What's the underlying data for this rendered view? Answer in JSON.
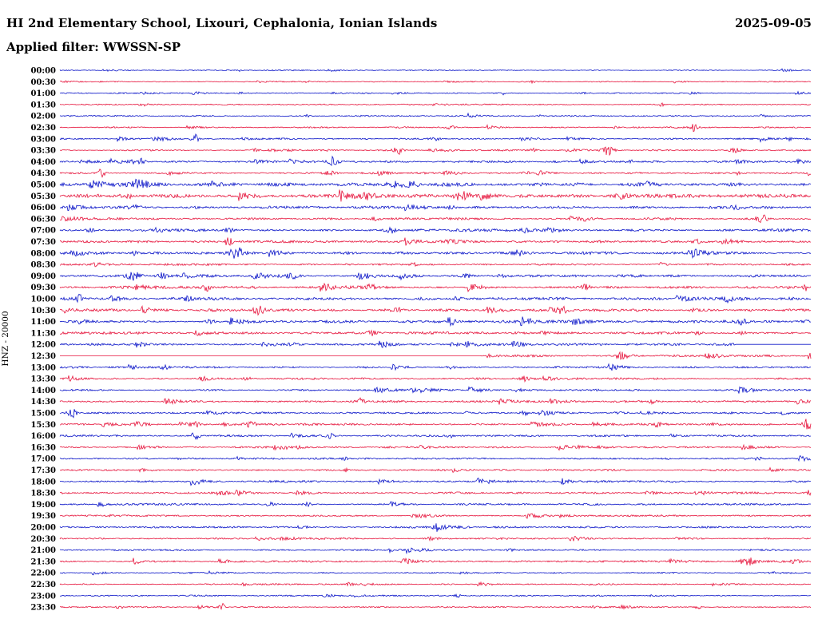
{
  "header": {
    "title": "HI 2nd Elementary School, Lixouri, Cephalonia, Ionian Islands",
    "date": "2025-09-05",
    "filter_label": "Applied filter: WWSSN-SP"
  },
  "axis": {
    "channel_label": "HNZ - 20000"
  },
  "colors": {
    "trace_blue": "#0a14c8",
    "trace_red": "#e6143c",
    "text": "#000000",
    "background": "#ffffff"
  },
  "chart_data": {
    "type": "line",
    "subtype": "helicorder-seismogram",
    "station": "HI 2nd Elementary School, Lixouri, Cephalonia, Ionian Islands",
    "date": "2025-09-05",
    "filter": "WWSSN-SP",
    "channel": "HNZ",
    "gain_scale": 20000,
    "minutes_per_row": 30,
    "legend_position": "none",
    "grid": false,
    "row_color_cycle": [
      "blue",
      "red"
    ],
    "rows": [
      {
        "t": "00:00",
        "color": "blue",
        "base": 0.6,
        "events": [
          [
            0.24,
            1.5,
            2
          ]
        ]
      },
      {
        "t": "00:30",
        "color": "red",
        "base": 0.6,
        "events": [
          [
            0.33,
            1.5,
            2
          ],
          [
            0.63,
            1.5,
            2
          ]
        ]
      },
      {
        "t": "01:00",
        "color": "blue",
        "base": 0.65,
        "events": [
          [
            0.24,
            1.5,
            2
          ],
          [
            0.59,
            2.5,
            2
          ]
        ]
      },
      {
        "t": "01:30",
        "color": "red",
        "base": 0.7,
        "events": [
          [
            0.11,
            2,
            4
          ],
          [
            0.5,
            2,
            3
          ],
          [
            0.8,
            2,
            3
          ]
        ]
      },
      {
        "t": "02:00",
        "color": "blue",
        "base": 0.75,
        "events": [
          [
            0.33,
            2,
            2
          ],
          [
            0.64,
            1.5,
            2
          ]
        ]
      },
      {
        "t": "02:30",
        "color": "red",
        "base": 0.8,
        "events": [
          [
            0.845,
            6,
            3
          ],
          [
            0.52,
            2,
            4
          ],
          [
            0.74,
            1.5,
            3
          ]
        ]
      },
      {
        "t": "03:00",
        "color": "blue",
        "base": 0.9,
        "events": [
          [
            0.18,
            9,
            3
          ],
          [
            0.14,
            2,
            4
          ],
          [
            0.5,
            2,
            4
          ],
          [
            0.97,
            2,
            3
          ]
        ]
      },
      {
        "t": "03:30",
        "color": "red",
        "base": 1.0,
        "events": [
          [
            0.45,
            5,
            4
          ],
          [
            0.73,
            7,
            5
          ],
          [
            0.63,
            2,
            4
          ],
          [
            0.9,
            3,
            4
          ],
          [
            0.26,
            2,
            3
          ]
        ]
      },
      {
        "t": "04:00",
        "color": "blue",
        "base": 1.1,
        "events": [
          [
            0.105,
            4,
            5
          ],
          [
            0.365,
            6,
            4
          ],
          [
            0.76,
            2,
            4
          ],
          [
            0.9,
            2.5,
            3
          ]
        ]
      },
      {
        "t": "04:30",
        "color": "red",
        "base": 1.1,
        "events": [
          [
            0.055,
            5,
            4
          ],
          [
            0.36,
            2,
            5
          ],
          [
            0.62,
            2.5,
            4
          ],
          [
            0.9,
            2,
            4
          ]
        ]
      },
      {
        "t": "05:00",
        "color": "blue",
        "base": 2.0,
        "events": [
          [
            0.105,
            5,
            8
          ],
          [
            0.205,
            3,
            6
          ],
          [
            0.45,
            4,
            8
          ],
          [
            0.47,
            3,
            5
          ],
          [
            0.78,
            3,
            5
          ]
        ]
      },
      {
        "t": "05:30",
        "color": "red",
        "base": 2.0,
        "events": [
          [
            0.09,
            3,
            6
          ],
          [
            0.41,
            3,
            6
          ],
          [
            0.535,
            5,
            7
          ],
          [
            0.75,
            2.5,
            5
          ]
        ]
      },
      {
        "t": "06:00",
        "color": "blue",
        "base": 1.5,
        "events": [
          [
            0.1,
            3,
            6
          ],
          [
            0.52,
            2,
            5
          ],
          [
            0.9,
            2.5,
            5
          ]
        ]
      },
      {
        "t": "06:30",
        "color": "red",
        "base": 1.3,
        "events": [
          [
            0.935,
            5,
            5
          ],
          [
            0.42,
            2,
            4
          ],
          [
            0.7,
            2,
            4
          ]
        ]
      },
      {
        "t": "07:00",
        "color": "blue",
        "base": 1.5,
        "events": [
          [
            0.04,
            2.5,
            4
          ],
          [
            0.225,
            2.5,
            4
          ],
          [
            0.44,
            4.5,
            4
          ],
          [
            0.62,
            2.5,
            4
          ]
        ]
      },
      {
        "t": "07:30",
        "color": "red",
        "base": 1.4,
        "events": [
          [
            0.225,
            4.5,
            4
          ],
          [
            0.52,
            3,
            5
          ],
          [
            0.85,
            2,
            4
          ]
        ]
      },
      {
        "t": "08:00",
        "color": "blue",
        "base": 1.5,
        "events": [
          [
            0.235,
            7,
            6
          ],
          [
            0.1,
            2.5,
            4
          ],
          [
            0.61,
            3,
            4
          ]
        ]
      },
      {
        "t": "08:30",
        "color": "red",
        "base": 1.2,
        "events": [
          [
            0.05,
            2,
            4
          ],
          [
            0.47,
            2,
            4
          ],
          [
            0.8,
            2,
            4
          ]
        ]
      },
      {
        "t": "09:00",
        "color": "blue",
        "base": 1.7,
        "events": [
          [
            0.1,
            5,
            7
          ],
          [
            0.135,
            4,
            4
          ],
          [
            0.31,
            2.5,
            4
          ],
          [
            0.54,
            2.5,
            4
          ]
        ]
      },
      {
        "t": "09:30",
        "color": "red",
        "base": 1.6,
        "events": [
          [
            0.195,
            5,
            4
          ],
          [
            0.415,
            3,
            4
          ],
          [
            0.7,
            4,
            4
          ],
          [
            0.995,
            5,
            3
          ]
        ]
      },
      {
        "t": "10:00",
        "color": "blue",
        "base": 1.7,
        "events": [
          [
            0.025,
            5,
            4
          ],
          [
            0.17,
            3,
            4
          ],
          [
            0.53,
            2.5,
            4
          ],
          [
            0.89,
            3,
            4
          ]
        ]
      },
      {
        "t": "10:30",
        "color": "red",
        "base": 1.5,
        "events": [
          [
            0.265,
            5,
            5
          ],
          [
            0.67,
            4,
            4
          ],
          [
            0.45,
            2.5,
            4
          ]
        ]
      },
      {
        "t": "11:00",
        "color": "blue",
        "base": 1.6,
        "events": [
          [
            0.52,
            5,
            4
          ],
          [
            0.91,
            4,
            4
          ],
          [
            0.2,
            2.5,
            4
          ]
        ]
      },
      {
        "t": "11:30",
        "color": "red",
        "base": 1.5,
        "events": [
          [
            0.415,
            4,
            4
          ],
          [
            0.645,
            3,
            4
          ],
          [
            0.85,
            2,
            4
          ]
        ]
      },
      {
        "t": "12:00",
        "color": "blue",
        "base": 1.4,
        "events": [
          [
            0.525,
            6,
            3
          ],
          [
            0.31,
            2.5,
            4
          ]
        ],
        "quiet": [
          [
            0.9,
            1.0
          ]
        ]
      },
      {
        "t": "12:30",
        "color": "red",
        "base": 1.3,
        "events": [
          [
            0.75,
            2.5,
            4
          ]
        ],
        "quiet": [
          [
            0.0,
            0.56
          ]
        ]
      },
      {
        "t": "13:00",
        "color": "blue",
        "base": 1.1,
        "events": [
          [
            0.14,
            2,
            4
          ],
          [
            0.52,
            2,
            4
          ]
        ]
      },
      {
        "t": "13:30",
        "color": "red",
        "base": 1.1,
        "events": [
          [
            0.62,
            2.5,
            4
          ],
          [
            0.25,
            2,
            4
          ]
        ]
      },
      {
        "t": "14:00",
        "color": "blue",
        "base": 1.1,
        "events": [
          [
            0.47,
            2,
            4
          ]
        ]
      },
      {
        "t": "14:30",
        "color": "red",
        "base": 1.1,
        "events": [
          [
            0.4,
            5,
            4
          ],
          [
            0.79,
            2,
            4
          ]
        ]
      },
      {
        "t": "15:00",
        "color": "blue",
        "base": 1.1,
        "events": [
          [
            0.016,
            6,
            4
          ],
          [
            0.62,
            2.5,
            4
          ]
        ]
      },
      {
        "t": "15:30",
        "color": "red",
        "base": 1.2,
        "events": [
          [
            0.255,
            5,
            5
          ],
          [
            0.995,
            7,
            4
          ],
          [
            0.18,
            2.5,
            4
          ]
        ]
      },
      {
        "t": "16:00",
        "color": "blue",
        "base": 1.1,
        "events": [
          [
            0.18,
            4,
            4
          ],
          [
            0.36,
            3,
            4
          ],
          [
            0.52,
            2,
            3
          ]
        ]
      },
      {
        "t": "16:30",
        "color": "red",
        "base": 1.0,
        "events": [
          [
            0.3,
            1.5,
            3
          ]
        ]
      },
      {
        "t": "17:00",
        "color": "blue",
        "base": 1.0,
        "events": [
          [
            0.38,
            2,
            3
          ],
          [
            0.93,
            2,
            3
          ]
        ]
      },
      {
        "t": "17:30",
        "color": "red",
        "base": 1.0,
        "events": [
          [
            0.38,
            2.5,
            3
          ]
        ]
      },
      {
        "t": "18:00",
        "color": "blue",
        "base": 1.2,
        "events": []
      },
      {
        "t": "18:30",
        "color": "red",
        "base": 1.1,
        "events": []
      },
      {
        "t": "19:00",
        "color": "blue",
        "base": 1.1,
        "events": [
          [
            0.28,
            2,
            3
          ],
          [
            0.33,
            2,
            3
          ]
        ]
      },
      {
        "t": "19:30",
        "color": "red",
        "base": 1.0,
        "events": []
      },
      {
        "t": "20:00",
        "color": "blue",
        "base": 1.1,
        "events": [
          [
            0.5,
            2,
            3
          ]
        ]
      },
      {
        "t": "20:30",
        "color": "red",
        "base": 1.0,
        "events": []
      },
      {
        "t": "21:00",
        "color": "blue",
        "base": 1.0,
        "events": [
          [
            0.44,
            2.5,
            3
          ],
          [
            0.6,
            2,
            3
          ]
        ]
      },
      {
        "t": "21:30",
        "color": "red",
        "base": 1.1,
        "events": [
          [
            0.915,
            5,
            7
          ]
        ]
      },
      {
        "t": "22:00",
        "color": "blue",
        "base": 0.7,
        "events": []
      },
      {
        "t": "22:30",
        "color": "red",
        "base": 0.7,
        "events": []
      },
      {
        "t": "23:00",
        "color": "blue",
        "base": 0.8,
        "events": [
          [
            0.53,
            2,
            3
          ],
          [
            0.79,
            1.5,
            3
          ]
        ]
      },
      {
        "t": "23:30",
        "color": "red",
        "base": 0.8,
        "events": [
          [
            0.215,
            5,
            3
          ],
          [
            0.85,
            2,
            3
          ]
        ]
      }
    ]
  }
}
